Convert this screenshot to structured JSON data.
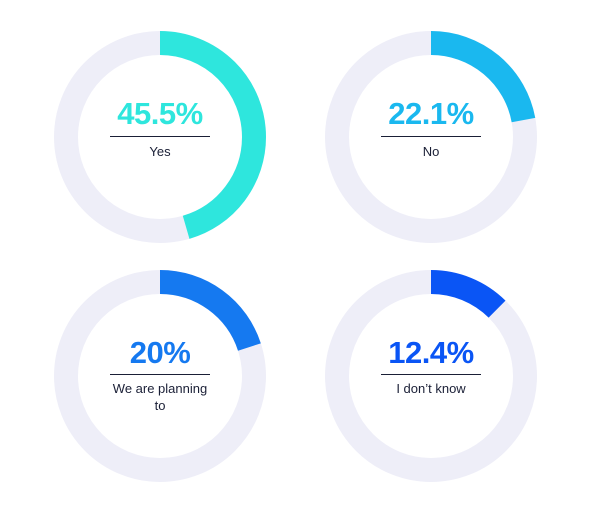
{
  "chart_data": [
    {
      "type": "pie",
      "variant": "donut",
      "value_label": "45.5%",
      "category_label": "Yes",
      "value": 45.5,
      "color": "#2ee6dd",
      "track_color": "#eeeef8",
      "text_color": "#2ee6dd"
    },
    {
      "type": "pie",
      "variant": "donut",
      "value_label": "22.1%",
      "category_label": "No",
      "value": 22.1,
      "color": "#1ab8ef",
      "track_color": "#eeeef8",
      "text_color": "#1ab8ef"
    },
    {
      "type": "pie",
      "variant": "donut",
      "value_label": "20%",
      "category_label": "We are planning to",
      "value": 20,
      "color": "#1579f0",
      "track_color": "#eeeef8",
      "text_color": "#1579f0"
    },
    {
      "type": "pie",
      "variant": "donut",
      "value_label": "12.4%",
      "category_label": "I don’t know",
      "value": 12.4,
      "color": "#0a55f5",
      "track_color": "#eeeef8",
      "text_color": "#0a55f5"
    }
  ],
  "colors": {
    "divider": "#1a1f36",
    "label_text": "#1a1f36"
  }
}
